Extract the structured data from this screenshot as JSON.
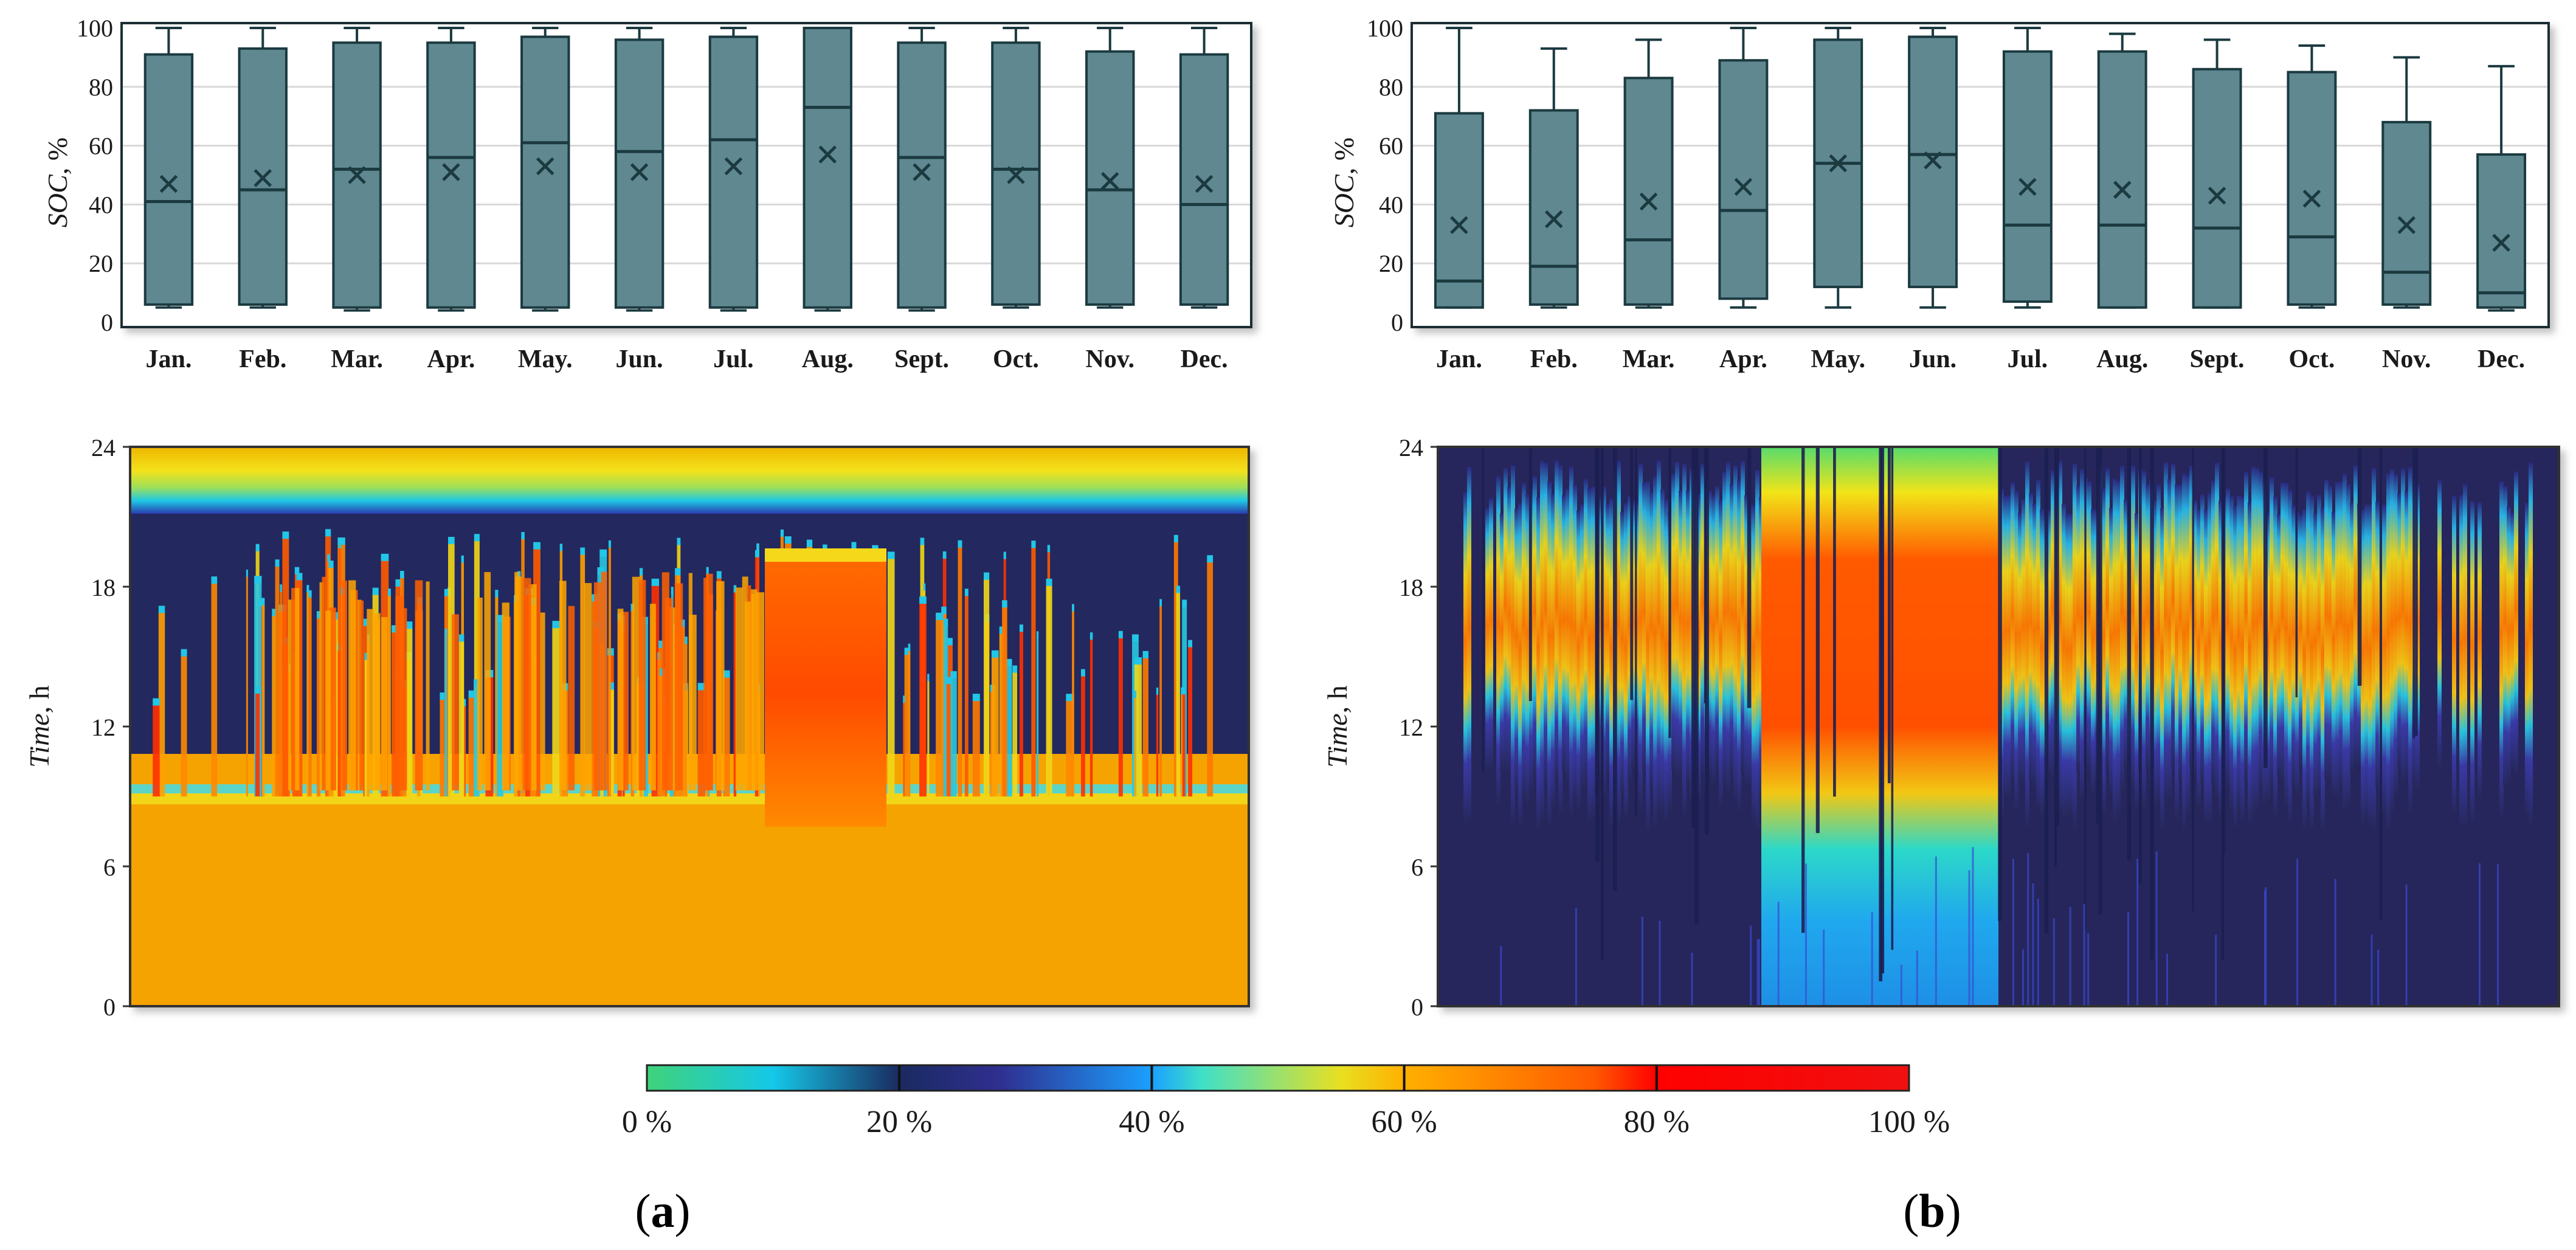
{
  "chart_data": [
    {
      "type": "box",
      "panel": "a-top",
      "ylabel_italic": "SOC",
      "ylabel_rest": ", %",
      "ylim": [
        0,
        100
      ],
      "yticks": [
        "0",
        "20",
        "40",
        "60",
        "80",
        "100"
      ],
      "categories": [
        "Jan.",
        "Feb.",
        "Mar.",
        "Apr.",
        "May.",
        "Jun.",
        "Jul.",
        "Aug.",
        "Sept.",
        "Oct.",
        "Nov.",
        "Dec."
      ],
      "min": [
        5,
        5,
        4,
        4,
        4,
        4,
        4,
        4,
        4,
        5,
        5,
        5
      ],
      "q1": [
        6,
        6,
        5,
        5,
        5,
        5,
        5,
        5,
        5,
        6,
        6,
        6
      ],
      "median": [
        41,
        45,
        52,
        56,
        61,
        58,
        62,
        73,
        56,
        52,
        45,
        40
      ],
      "mean": [
        47,
        49,
        50,
        51,
        53,
        51,
        53,
        57,
        51,
        50,
        48,
        47
      ],
      "q3": [
        91,
        93,
        95,
        95,
        97,
        96,
        97,
        100,
        95,
        95,
        92,
        91
      ],
      "max": [
        100,
        100,
        100,
        100,
        100,
        100,
        100,
        100,
        100,
        100,
        100,
        100
      ]
    },
    {
      "type": "box",
      "panel": "b-top",
      "ylabel_italic": "SOC",
      "ylabel_rest": ", %",
      "ylim": [
        0,
        100
      ],
      "yticks": [
        "0",
        "20",
        "40",
        "60",
        "80",
        "100"
      ],
      "categories": [
        "Jan.",
        "Feb.",
        "Mar.",
        "Apr.",
        "May.",
        "Jun.",
        "Jul.",
        "Aug.",
        "Sept.",
        "Oct.",
        "Nov.",
        "Dec."
      ],
      "min": [
        5,
        5,
        5,
        5,
        5,
        5,
        5,
        5,
        5,
        5,
        5,
        4
      ],
      "q1": [
        5,
        6,
        6,
        8,
        12,
        12,
        7,
        5,
        5,
        6,
        6,
        5
      ],
      "median": [
        14,
        19,
        28,
        38,
        54,
        57,
        33,
        33,
        32,
        29,
        17,
        10
      ],
      "mean": [
        33,
        35,
        41,
        46,
        54,
        55,
        46,
        45,
        43,
        42,
        33,
        27
      ],
      "q3": [
        71,
        72,
        83,
        89,
        96,
        97,
        92,
        92,
        86,
        85,
        68,
        57
      ],
      "max": [
        100,
        93,
        96,
        100,
        100,
        100,
        100,
        98,
        96,
        94,
        90,
        87
      ]
    },
    {
      "type": "heatmap",
      "panel": "a-bottom",
      "ylabel_italic": "Time",
      "ylabel_rest": ", h",
      "ylim": [
        0,
        24
      ],
      "yticks": [
        "0",
        "6",
        "12",
        "18",
        "24"
      ],
      "description_values": "daily SOC profile over a year; night baseline ~60-65 %, midday charging 70-95 %, evening band 40-60 %"
    },
    {
      "type": "heatmap",
      "panel": "b-bottom",
      "ylabel_italic": "Time",
      "ylabel_rest": ", h",
      "ylim": [
        0,
        24
      ],
      "yticks": [
        "0",
        "6",
        "12",
        "18",
        "24"
      ],
      "description_values": "daily SOC profile over a year; low overnight 20-30 %, midday 60-85 %"
    },
    {
      "type": "colorbar",
      "ticks": [
        "0 %",
        "20 %",
        "40 %",
        "60 %",
        "80 %",
        "100 %"
      ],
      "stops": [
        "#3fd37a",
        "#14c8e8",
        "#1e2a6e",
        "#2f2f90",
        "#1aa0ff",
        "#3fe0c8",
        "#f0e020",
        "#ffb000",
        "#ff5a00",
        "#ff0000",
        "#f41414"
      ]
    }
  ],
  "panel_labels": [
    "(a)",
    "(b)"
  ]
}
